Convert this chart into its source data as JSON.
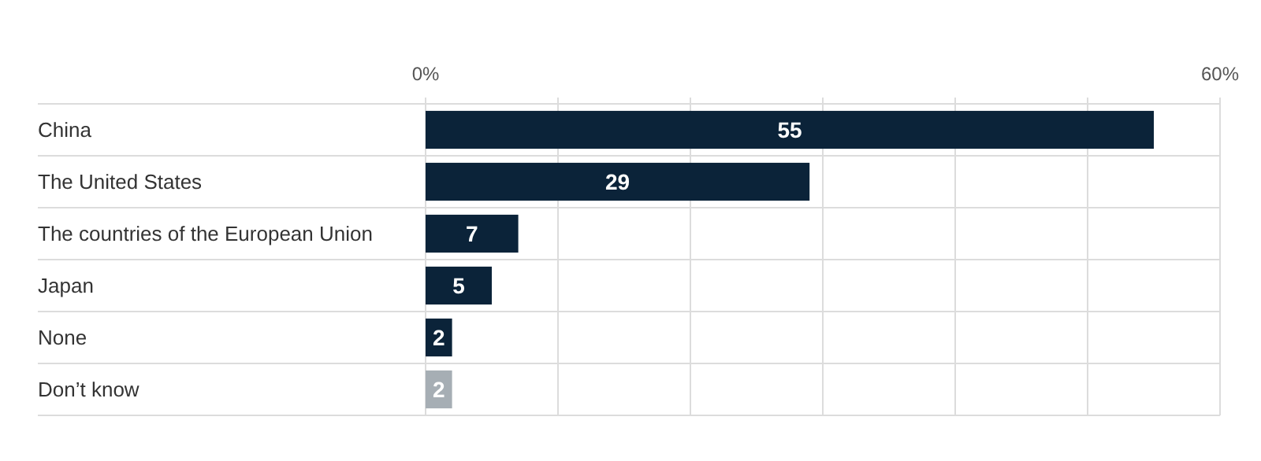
{
  "chart_data": {
    "type": "bar",
    "orientation": "horizontal",
    "categories": [
      "China",
      "The United States",
      "The countries of the European Union",
      "Japan",
      "None",
      "Don’t know"
    ],
    "values": [
      55,
      29,
      7,
      5,
      2,
      2
    ],
    "colors": [
      "#0b2339",
      "#0b2339",
      "#0b2339",
      "#0b2339",
      "#0b2339",
      "#a6aeb4"
    ],
    "xlim": [
      0,
      60
    ],
    "xticks": [
      {
        "value": 0,
        "label": "0%"
      },
      {
        "value": 10,
        "label": null
      },
      {
        "value": 20,
        "label": null
      },
      {
        "value": 30,
        "label": null
      },
      {
        "value": 40,
        "label": null
      },
      {
        "value": 50,
        "label": null
      },
      {
        "value": 60,
        "label": "60%"
      }
    ],
    "grid": true,
    "data_labels": true
  }
}
